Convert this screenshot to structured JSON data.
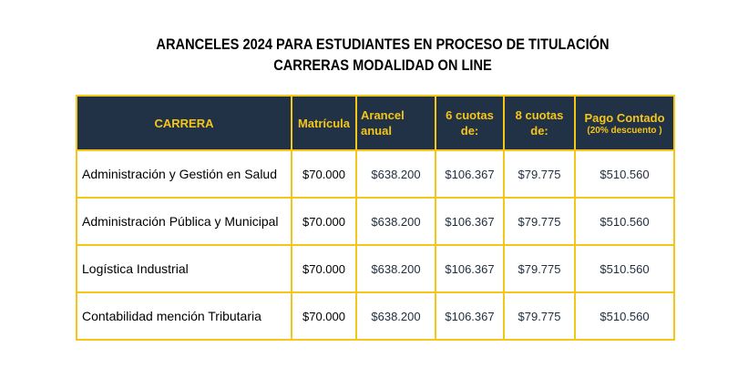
{
  "title": {
    "line1": "ARANCELES 2024 PARA ESTUDIANTES EN PROCESO DE TITULACIÓN",
    "line2": "CARRERAS MODALIDAD ON LINE"
  },
  "table": {
    "headers": {
      "carrera": "CARRERA",
      "matricula": "Matrícula",
      "arancel_line1": "Arancel",
      "arancel_line2": "anual",
      "cuotas6_line1": "6 cuotas",
      "cuotas6_line2": "de:",
      "cuotas8_line1": "8 cuotas",
      "cuotas8_line2": "de:",
      "contado_line1": "Pago Contado",
      "contado_line2": "(20% descuento )"
    },
    "rows": [
      {
        "carrera": "Administración y Gestión en Salud",
        "matricula": "$70.000",
        "arancel": "$638.200",
        "cuotas6": "$106.367",
        "cuotas8": "$79.775",
        "contado": "$510.560"
      },
      {
        "carrera": "Administración Pública y Municipal",
        "matricula": "$70.000",
        "arancel": "$638.200",
        "cuotas6": "$106.367",
        "cuotas8": "$79.775",
        "contado": "$510.560"
      },
      {
        "carrera": "Logística Industrial",
        "matricula": "$70.000",
        "arancel": "$638.200",
        "cuotas6": "$106.367",
        "cuotas8": "$79.775",
        "contado": "$510.560"
      },
      {
        "carrera": "Contabilidad mención Tributaria",
        "matricula": "$70.000",
        "arancel": "$638.200",
        "cuotas6": "$106.367",
        "cuotas8": "$79.775",
        "contado": "$510.560"
      }
    ]
  },
  "colors": {
    "header_background": "#213246",
    "header_text": "#f5c518",
    "border": "#f5c518"
  }
}
